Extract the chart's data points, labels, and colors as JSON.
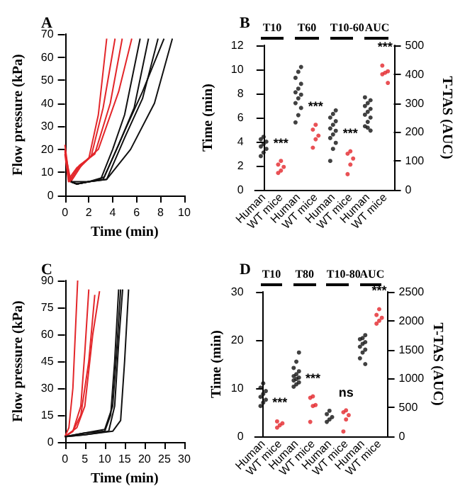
{
  "chart_data": [
    {
      "type": "line",
      "title": "A",
      "xlabel": "Time (min)",
      "ylabel": "Flow pressure (kPa)",
      "xlim": [
        0,
        10
      ],
      "xticks": [
        0,
        2,
        4,
        6,
        8,
        10
      ],
      "ylim": [
        0,
        70
      ],
      "yticks": [
        0,
        10,
        20,
        30,
        40,
        50,
        60,
        70
      ],
      "marker": "none",
      "series": [
        {
          "color": "#e3262a",
          "x": [
            0,
            0.3,
            1,
            2,
            2.8,
            3.5
          ],
          "values": [
            20,
            7,
            12,
            16,
            35,
            68
          ]
        },
        {
          "color": "#e3262a",
          "x": [
            0,
            0.3,
            1,
            2.2,
            3.2,
            4.2
          ],
          "values": [
            18,
            6,
            11,
            17,
            38,
            68
          ]
        },
        {
          "color": "#e3262a",
          "x": [
            0,
            0.4,
            1.2,
            2.5,
            3.8,
            4.8
          ],
          "values": [
            22,
            6,
            13,
            18,
            40,
            68
          ]
        },
        {
          "color": "#e3262a",
          "x": [
            0,
            0.5,
            1.5,
            2.8,
            4.5,
            5.6
          ],
          "values": [
            19,
            6,
            14,
            20,
            45,
            68
          ]
        },
        {
          "color": "#111111",
          "x": [
            0.5,
            1,
            2,
            3,
            4,
            5,
            6.3
          ],
          "values": [
            6,
            6,
            6,
            7,
            20,
            35,
            68
          ]
        },
        {
          "color": "#111111",
          "x": [
            0.5,
            1,
            2,
            3.2,
            4.5,
            5.8,
            7
          ],
          "values": [
            6,
            5,
            6,
            7,
            22,
            38,
            68
          ]
        },
        {
          "color": "#111111",
          "x": [
            0.5,
            1,
            2,
            3.5,
            5,
            6.5,
            7.8
          ],
          "values": [
            6,
            5,
            6,
            7,
            25,
            42,
            68
          ]
        },
        {
          "color": "#111111",
          "x": [
            0.5,
            1,
            2,
            3.5,
            5.5,
            7.5,
            9
          ],
          "values": [
            6,
            5,
            6,
            7,
            20,
            40,
            68
          ]
        },
        {
          "color": "#111111",
          "x": [
            0.5,
            1,
            2,
            3.3,
            5,
            6.5,
            8.3
          ],
          "values": [
            6,
            5,
            6,
            8,
            28,
            45,
            68
          ]
        }
      ]
    },
    {
      "type": "scatter",
      "title": "B",
      "categories": [
        "Human",
        "WT mice",
        "Human",
        "WT mice",
        "Human",
        "WT mice",
        "Human",
        "WT mice"
      ],
      "ylabel": "Time (min)",
      "y2label": "T-TAS (AUC)",
      "ylim": [
        0,
        12
      ],
      "yticks": [
        0,
        2,
        4,
        6,
        8,
        10,
        12
      ],
      "y2lim": [
        0,
        500
      ],
      "y2ticks": [
        0,
        100,
        200,
        300,
        400,
        500
      ],
      "marker": "circle",
      "annotations": [
        "T10",
        "T60",
        "T10-60",
        "AUC",
        "***",
        "***",
        "***",
        "***"
      ],
      "series": [
        {
          "color": "#111111",
          "values": [
            2.8,
            null,
            5.6,
            null,
            2.4,
            null,
            null,
            null
          ]
        },
        {
          "color": "#111111",
          "values": [
            3.1,
            null,
            6.2,
            null,
            3.4,
            null,
            null,
            null
          ]
        },
        {
          "color": "#111111",
          "values": [
            3.4,
            null,
            6.8,
            null,
            3.9,
            null,
            null,
            null
          ]
        },
        {
          "color": "#111111",
          "values": [
            3.6,
            null,
            7.2,
            null,
            4.3,
            null,
            null,
            null
          ]
        },
        {
          "color": "#111111",
          "values": [
            3.8,
            null,
            7.6,
            null,
            4.6,
            null,
            null,
            null
          ]
        },
        {
          "color": "#111111",
          "values": [
            4.0,
            null,
            7.9,
            null,
            4.9,
            null,
            null,
            null
          ]
        },
        {
          "color": "#111111",
          "values": [
            4.2,
            null,
            8.1,
            null,
            5.1,
            null,
            null,
            null
          ]
        },
        {
          "color": "#111111",
          "values": [
            4.4,
            null,
            8.4,
            null,
            5.4,
            null,
            null,
            null
          ]
        },
        {
          "color": "#111111",
          "values": [
            null,
            null,
            8.8,
            null,
            5.7,
            null,
            null,
            null
          ]
        },
        {
          "color": "#111111",
          "values": [
            null,
            null,
            9.3,
            null,
            6.0,
            null,
            null,
            null
          ]
        },
        {
          "color": "#111111",
          "values": [
            null,
            null,
            9.8,
            null,
            6.3,
            null,
            null,
            null
          ]
        },
        {
          "color": "#111111",
          "values": [
            null,
            null,
            10.2,
            null,
            6.6,
            null,
            null,
            null
          ]
        },
        {
          "color": "#e3262a",
          "values": [
            null,
            1.4,
            null,
            3.5,
            null,
            1.3,
            null,
            null
          ]
        },
        {
          "color": "#e3262a",
          "values": [
            null,
            1.6,
            null,
            4.2,
            null,
            2.1,
            null,
            null
          ]
        },
        {
          "color": "#e3262a",
          "values": [
            null,
            1.9,
            null,
            4.5,
            null,
            2.6,
            null,
            null
          ]
        },
        {
          "color": "#e3262a",
          "values": [
            null,
            2.1,
            null,
            5.0,
            null,
            3.0,
            null,
            null
          ]
        },
        {
          "color": "#e3262a",
          "values": [
            null,
            2.4,
            null,
            5.4,
            null,
            3.2,
            null,
            null
          ]
        },
        {
          "color": "#111111",
          "axis": "y2",
          "values": [
            null,
            null,
            null,
            null,
            null,
            null,
            205,
            null
          ]
        },
        {
          "color": "#111111",
          "axis": "y2",
          "values": [
            null,
            null,
            null,
            null,
            null,
            null,
            220,
            null
          ]
        },
        {
          "color": "#111111",
          "axis": "y2",
          "values": [
            null,
            null,
            null,
            null,
            null,
            null,
            235,
            null
          ]
        },
        {
          "color": "#111111",
          "axis": "y2",
          "values": [
            null,
            null,
            null,
            null,
            null,
            null,
            250,
            null
          ]
        },
        {
          "color": "#111111",
          "axis": "y2",
          "values": [
            null,
            null,
            null,
            null,
            null,
            null,
            260,
            null
          ]
        },
        {
          "color": "#111111",
          "axis": "y2",
          "values": [
            null,
            null,
            null,
            null,
            null,
            null,
            270,
            null
          ]
        },
        {
          "color": "#111111",
          "axis": "y2",
          "values": [
            null,
            null,
            null,
            null,
            null,
            null,
            280,
            null
          ]
        },
        {
          "color": "#111111",
          "axis": "y2",
          "values": [
            null,
            null,
            null,
            null,
            null,
            null,
            290,
            null
          ]
        },
        {
          "color": "#111111",
          "axis": "y2",
          "values": [
            null,
            null,
            null,
            null,
            null,
            null,
            300,
            null
          ]
        },
        {
          "color": "#111111",
          "axis": "y2",
          "values": [
            null,
            null,
            null,
            null,
            null,
            null,
            310,
            null
          ]
        },
        {
          "color": "#111111",
          "axis": "y2",
          "values": [
            null,
            null,
            null,
            null,
            null,
            null,
            320,
            null
          ]
        },
        {
          "color": "#111111",
          "axis": "y2",
          "values": [
            null,
            null,
            null,
            null,
            null,
            null,
            215,
            null
          ]
        },
        {
          "color": "#e3262a",
          "axis": "y2",
          "values": [
            null,
            null,
            null,
            null,
            null,
            null,
            null,
            370
          ]
        },
        {
          "color": "#e3262a",
          "axis": "y2",
          "values": [
            null,
            null,
            null,
            null,
            null,
            null,
            null,
            400
          ]
        },
        {
          "color": "#e3262a",
          "axis": "y2",
          "values": [
            null,
            null,
            null,
            null,
            null,
            null,
            null,
            405
          ]
        },
        {
          "color": "#e3262a",
          "axis": "y2",
          "values": [
            null,
            null,
            null,
            null,
            null,
            null,
            null,
            410
          ]
        },
        {
          "color": "#e3262a",
          "axis": "y2",
          "values": [
            null,
            null,
            null,
            null,
            null,
            null,
            null,
            430
          ]
        }
      ]
    },
    {
      "type": "line",
      "title": "C",
      "xlabel": "Time (min)",
      "ylabel": "Flow pressure (kPa)",
      "xlim": [
        0,
        30
      ],
      "xticks": [
        0,
        5,
        10,
        15,
        20,
        25,
        30
      ],
      "ylim": [
        0,
        90
      ],
      "yticks": [
        0,
        15,
        30,
        45,
        60,
        75,
        90
      ],
      "marker": "none",
      "series": [
        {
          "color": "#e3262a",
          "x": [
            0,
            1,
            2,
            3.2
          ],
          "values": [
            3,
            8,
            30,
            90
          ]
        },
        {
          "color": "#e3262a",
          "x": [
            0,
            2,
            4,
            5,
            6
          ],
          "values": [
            3,
            6,
            20,
            50,
            85
          ]
        },
        {
          "color": "#e3262a",
          "x": [
            0,
            2,
            4,
            6,
            7.5
          ],
          "values": [
            3,
            6,
            15,
            45,
            82
          ]
        },
        {
          "color": "#e3262a",
          "x": [
            0,
            3,
            5,
            7,
            8.7
          ],
          "values": [
            3,
            8,
            20,
            60,
            84
          ]
        },
        {
          "color": "#111111",
          "x": [
            0,
            5,
            10,
            11.5,
            12.5,
            13.5
          ],
          "values": [
            3,
            5,
            6,
            15,
            45,
            85
          ]
        },
        {
          "color": "#111111",
          "x": [
            0,
            5,
            10,
            12,
            13,
            14
          ],
          "values": [
            3,
            5,
            7,
            20,
            50,
            85
          ]
        },
        {
          "color": "#111111",
          "x": [
            0,
            5,
            11,
            12.5,
            13.5,
            14.5
          ],
          "values": [
            3,
            4,
            6,
            20,
            55,
            85
          ]
        },
        {
          "color": "#111111",
          "x": [
            0,
            5,
            12,
            14,
            15,
            16
          ],
          "values": [
            3,
            4,
            6,
            12,
            45,
            85
          ]
        }
      ]
    },
    {
      "type": "scatter",
      "title": "D",
      "categories": [
        "Human",
        "WT mice",
        "Human",
        "WT mice",
        "Human",
        "WT mice",
        "Human",
        "WT mice"
      ],
      "ylabel": "Time (min)",
      "y2label": "T-TAS (AUC)",
      "ylim": [
        0,
        30
      ],
      "yticks": [
        0,
        10,
        20,
        30
      ],
      "y2lim": [
        0,
        2500
      ],
      "y2ticks": [
        0,
        500,
        1000,
        1500,
        2000,
        2500
      ],
      "marker": "circle",
      "annotations": [
        "T10",
        "T80",
        "T10-80",
        "AUC",
        "***",
        "***",
        "ns",
        "***"
      ],
      "series": [
        {
          "color": "#111111",
          "values": [
            6.3,
            null,
            10.3,
            null,
            3.0,
            null,
            null,
            null
          ]
        },
        {
          "color": "#111111",
          "values": [
            7.0,
            null,
            10.8,
            null,
            3.5,
            null,
            null,
            null
          ]
        },
        {
          "color": "#111111",
          "values": [
            7.6,
            null,
            11.2,
            null,
            4.0,
            null,
            null,
            null
          ]
        },
        {
          "color": "#111111",
          "values": [
            8.2,
            null,
            11.6,
            null,
            4.6,
            null,
            null,
            null
          ]
        },
        {
          "color": "#111111",
          "values": [
            8.8,
            null,
            11.9,
            null,
            5.3,
            null,
            null,
            null
          ]
        },
        {
          "color": "#111111",
          "values": [
            9.4,
            null,
            12.2,
            null,
            null,
            null,
            null,
            null
          ]
        },
        {
          "color": "#111111",
          "values": [
            10.1,
            null,
            12.5,
            null,
            null,
            null,
            null,
            null
          ]
        },
        {
          "color": "#111111",
          "values": [
            11.0,
            null,
            12.9,
            null,
            null,
            null,
            null,
            null
          ]
        },
        {
          "color": "#111111",
          "values": [
            null,
            null,
            13.5,
            null,
            null,
            null,
            null,
            null
          ]
        },
        {
          "color": "#111111",
          "values": [
            null,
            null,
            14.2,
            null,
            null,
            null,
            null,
            null
          ]
        },
        {
          "color": "#111111",
          "values": [
            null,
            null,
            15.5,
            null,
            null,
            null,
            null,
            null
          ]
        },
        {
          "color": "#111111",
          "values": [
            null,
            null,
            17.4,
            null,
            null,
            null,
            null,
            null
          ]
        },
        {
          "color": "#e3262a",
          "values": [
            null,
            1.8,
            null,
            3.0,
            null,
            1.0,
            null,
            null
          ]
        },
        {
          "color": "#e3262a",
          "values": [
            null,
            2.3,
            null,
            6.3,
            null,
            3.5,
            null,
            null
          ]
        },
        {
          "color": "#e3262a",
          "values": [
            null,
            2.7,
            null,
            6.5,
            null,
            4.4,
            null,
            null
          ]
        },
        {
          "color": "#e3262a",
          "values": [
            null,
            3.1,
            null,
            8.0,
            null,
            5.0,
            null,
            null
          ]
        },
        {
          "color": "#e3262a",
          "values": [
            null,
            null,
            null,
            8.3,
            null,
            5.4,
            null,
            null
          ]
        },
        {
          "color": "#111111",
          "axis": "y2",
          "values": [
            null,
            null,
            null,
            null,
            null,
            null,
            1250,
            null
          ]
        },
        {
          "color": "#111111",
          "axis": "y2",
          "values": [
            null,
            null,
            null,
            null,
            null,
            null,
            1350,
            null
          ]
        },
        {
          "color": "#111111",
          "axis": "y2",
          "values": [
            null,
            null,
            null,
            null,
            null,
            null,
            1450,
            null
          ]
        },
        {
          "color": "#111111",
          "axis": "y2",
          "values": [
            null,
            null,
            null,
            null,
            null,
            null,
            1500,
            null
          ]
        },
        {
          "color": "#111111",
          "axis": "y2",
          "values": [
            null,
            null,
            null,
            null,
            null,
            null,
            1550,
            null
          ]
        },
        {
          "color": "#111111",
          "axis": "y2",
          "values": [
            null,
            null,
            null,
            null,
            null,
            null,
            1600,
            null
          ]
        },
        {
          "color": "#111111",
          "axis": "y2",
          "values": [
            null,
            null,
            null,
            null,
            null,
            null,
            1630,
            null
          ]
        },
        {
          "color": "#111111",
          "axis": "y2",
          "values": [
            null,
            null,
            null,
            null,
            null,
            null,
            1680,
            null
          ]
        },
        {
          "color": "#111111",
          "axis": "y2",
          "values": [
            null,
            null,
            null,
            null,
            null,
            null,
            1700,
            null
          ]
        },
        {
          "color": "#111111",
          "axis": "y2",
          "values": [
            null,
            null,
            null,
            null,
            null,
            null,
            1750,
            null
          ]
        },
        {
          "color": "#e3262a",
          "axis": "y2",
          "values": [
            null,
            null,
            null,
            null,
            null,
            null,
            null,
            1950
          ]
        },
        {
          "color": "#e3262a",
          "axis": "y2",
          "values": [
            null,
            null,
            null,
            null,
            null,
            null,
            null,
            2000
          ]
        },
        {
          "color": "#e3262a",
          "axis": "y2",
          "values": [
            null,
            null,
            null,
            null,
            null,
            null,
            null,
            2050
          ]
        },
        {
          "color": "#e3262a",
          "axis": "y2",
          "values": [
            null,
            null,
            null,
            null,
            null,
            null,
            null,
            2100
          ]
        },
        {
          "color": "#e3262a",
          "axis": "y2",
          "values": [
            null,
            null,
            null,
            null,
            null,
            null,
            null,
            2200
          ]
        }
      ]
    }
  ]
}
